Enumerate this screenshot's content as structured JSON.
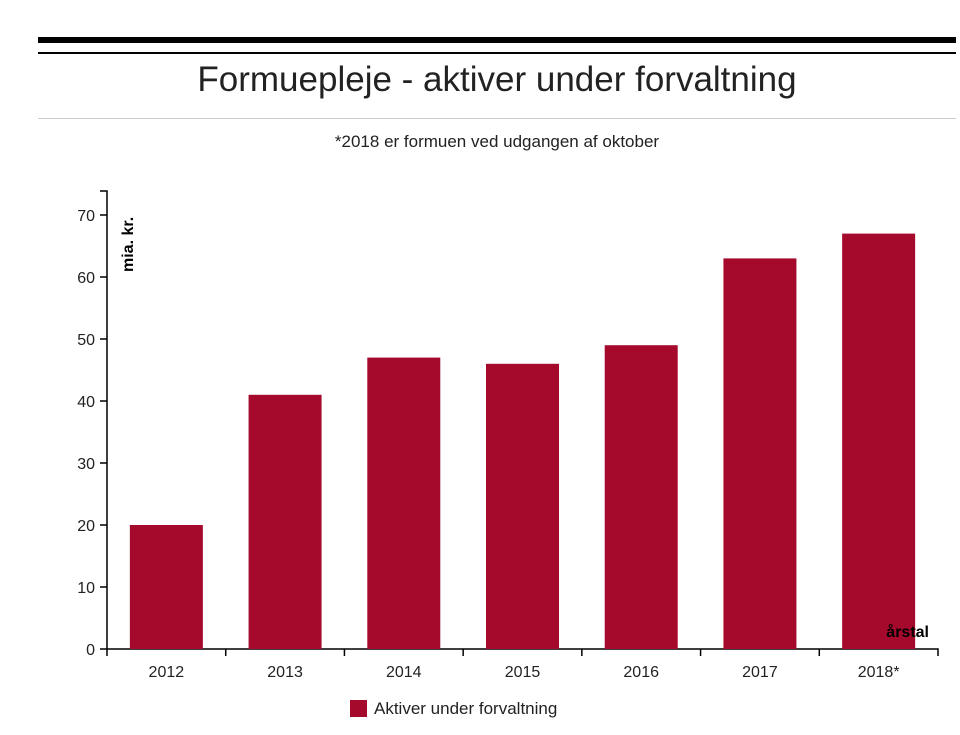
{
  "chart_data": {
    "type": "bar",
    "title": "Formuepleje - aktiver under forvaltning",
    "subtitle": "*2018 er formuen ved udgangen af oktober",
    "xlabel": "årstal",
    "ylabel": "mia. kr.",
    "categories": [
      "2012",
      "2013",
      "2014",
      "2015",
      "2016",
      "2017",
      "2018*"
    ],
    "series": [
      {
        "name": "Aktiver under forvaltning",
        "values": [
          20,
          41,
          47,
          46,
          49,
          63,
          67
        ],
        "color": "#a50a2c"
      }
    ],
    "yticks": [
      0,
      10,
      20,
      30,
      40,
      50,
      60,
      70
    ],
    "ylim": [
      0,
      74
    ],
    "grid": false,
    "legend": "bottom-center"
  }
}
